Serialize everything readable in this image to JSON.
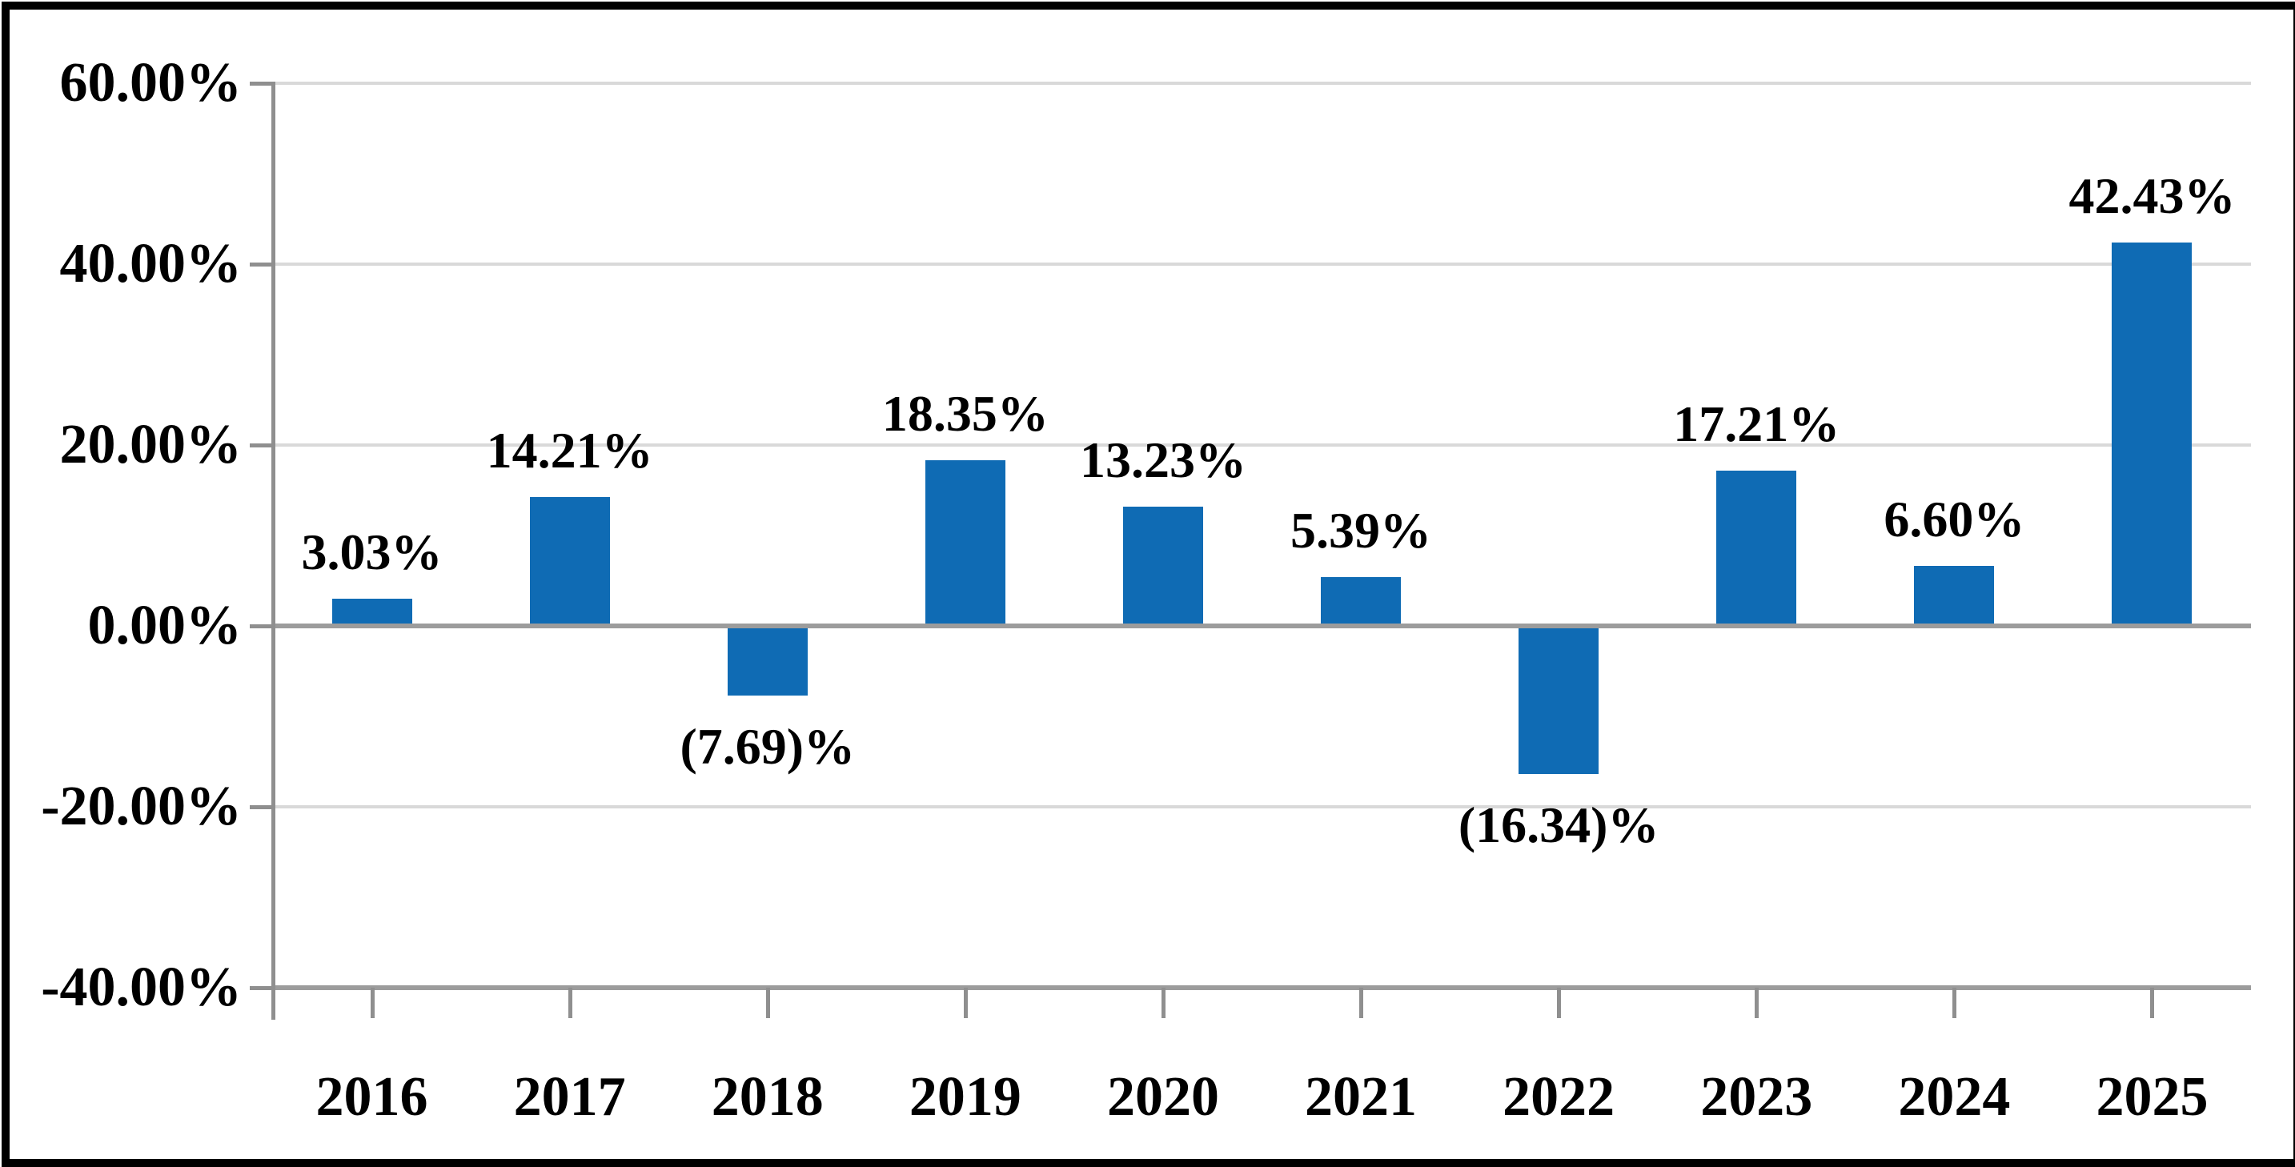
{
  "chart_data": {
    "type": "bar",
    "categories": [
      "2016",
      "2017",
      "2018",
      "2019",
      "2020",
      "2021",
      "2022",
      "2023",
      "2024",
      "2025"
    ],
    "values": [
      3.03,
      14.21,
      -7.69,
      18.35,
      13.23,
      5.39,
      -16.34,
      17.21,
      6.6,
      42.43
    ],
    "labels": [
      "3.03%",
      "14.21%",
      "(7.69)%",
      "18.35%",
      "13.23%",
      "5.39%",
      "(16.34)%",
      "17.21%",
      "6.60%",
      "42.43%"
    ],
    "y_axis": {
      "min": -40,
      "max": 60,
      "ticks": [
        {
          "value": 60,
          "label": "60.00%"
        },
        {
          "value": 40,
          "label": "40.00%"
        },
        {
          "value": 20,
          "label": "20.00%"
        },
        {
          "value": 0,
          "label": "0.00%"
        },
        {
          "value": -20,
          "label": "-20.00%"
        },
        {
          "value": -40,
          "label": "-40.00%"
        }
      ]
    },
    "grid": true,
    "legend": "none",
    "colors": {
      "bar": "#0F6BB4",
      "gridline": "#D9D9D9",
      "axis": "#8F8F8F",
      "zero_line": "#9C9C9C",
      "text": "#000000",
      "background": "#FFFFFF",
      "border": "#000000"
    }
  }
}
